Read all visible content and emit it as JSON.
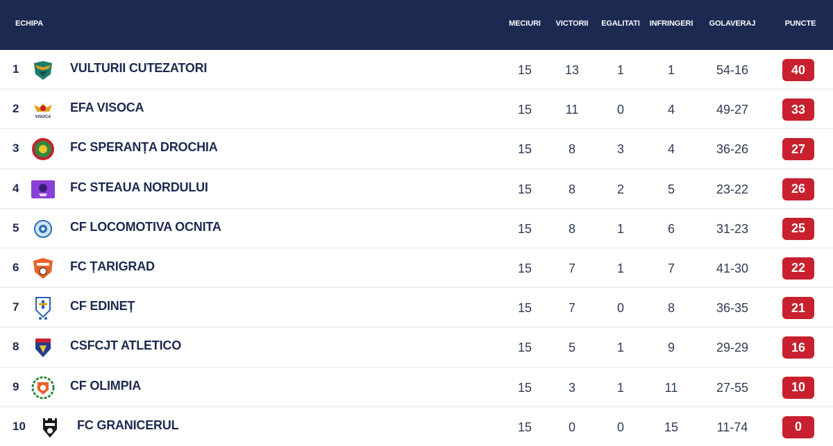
{
  "header": {
    "team": "ECHIPA",
    "matches": "MECIURI",
    "wins": "VICTORII",
    "draws": "EGALITATI",
    "losses": "INFRINGERI",
    "goals": "GOLAVERAJ",
    "points": "PUNCTE"
  },
  "colors": {
    "header_bg": "#1c2a52",
    "badge_bg": "#c8202e",
    "text": "#1b2a4e"
  },
  "rows": [
    {
      "pos": "1",
      "name": "VULTURII CUTEZATORI",
      "matches": "15",
      "wins": "13",
      "draws": "1",
      "losses": "1",
      "goals": "54-16",
      "points": "40",
      "logo": "eagle-crest-icon"
    },
    {
      "pos": "2",
      "name": "EFA VISOCA",
      "matches": "15",
      "wins": "11",
      "draws": "0",
      "losses": "4",
      "goals": "49-27",
      "points": "33",
      "logo": "visoca-crest-icon",
      "logo_text": "VISOCA"
    },
    {
      "pos": "3",
      "name": "FC SPERANȚA DROCHIA",
      "matches": "15",
      "wins": "8",
      "draws": "3",
      "losses": "4",
      "goals": "36-26",
      "points": "27",
      "logo": "round-crest-icon"
    },
    {
      "pos": "4",
      "name": "FC STEAUA NORDULUI",
      "matches": "15",
      "wins": "8",
      "draws": "2",
      "losses": "5",
      "goals": "23-22",
      "points": "26",
      "logo": "purple-crest-icon"
    },
    {
      "pos": "5",
      "name": "CF LOCOMOTIVA OCNITA",
      "matches": "15",
      "wins": "8",
      "draws": "1",
      "losses": "6",
      "goals": "31-23",
      "points": "25",
      "logo": "blue-ball-crest-icon"
    },
    {
      "pos": "6",
      "name": "FC ȚARIGRAD",
      "matches": "15",
      "wins": "7",
      "draws": "1",
      "losses": "7",
      "goals": "41-30",
      "points": "22",
      "logo": "orange-crest-icon"
    },
    {
      "pos": "7",
      "name": "CF EDINEȚ",
      "matches": "15",
      "wins": "7",
      "draws": "0",
      "losses": "8",
      "goals": "36-35",
      "points": "21",
      "logo": "edinet-crest-icon"
    },
    {
      "pos": "8",
      "name": "CSFCJT ATLETICO",
      "matches": "15",
      "wins": "5",
      "draws": "1",
      "losses": "9",
      "goals": "29-29",
      "points": "16",
      "logo": "shield-crest-icon"
    },
    {
      "pos": "9",
      "name": "CF OLIMPIA",
      "matches": "15",
      "wins": "3",
      "draws": "1",
      "losses": "11",
      "goals": "27-55",
      "points": "10",
      "logo": "laurel-crest-icon"
    },
    {
      "pos": "10",
      "name": "FC GRANICERUL",
      "matches": "15",
      "wins": "0",
      "draws": "0",
      "losses": "15",
      "goals": "11-74",
      "points": "0",
      "logo": "castle-crest-icon"
    }
  ]
}
